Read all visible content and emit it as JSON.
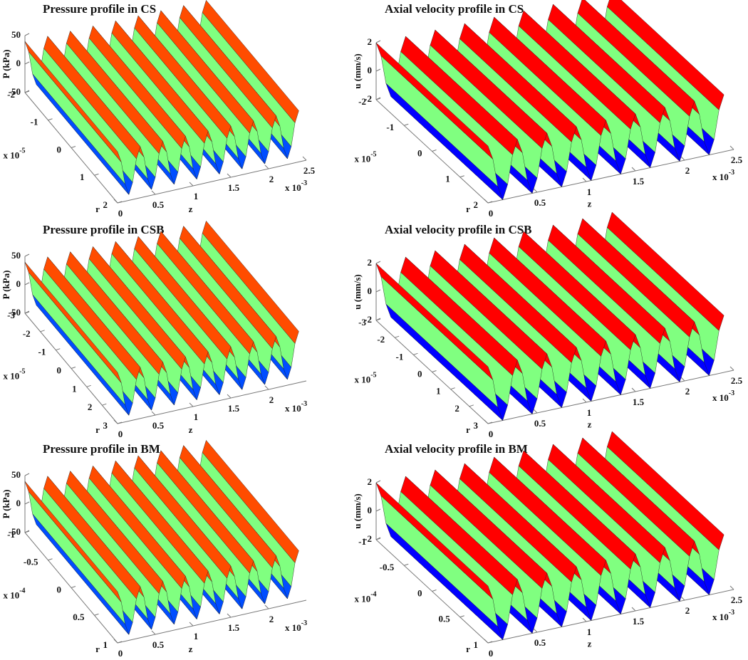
{
  "chart_data": [
    {
      "type": "surface",
      "title": "Pressure profile in CS",
      "ylabel": "P (kPa)",
      "xlabel": "z",
      "rlabel": "r",
      "x_multiplier": {
        "base": "x 10",
        "exponent": "-3"
      },
      "r_multiplier": {
        "base": "x 10",
        "exponent": "-5"
      },
      "x": [
        0,
        0.05,
        0.1,
        0.15,
        0.2,
        0.25,
        0.3,
        0.35,
        0.4,
        0.45,
        0.5,
        0.55,
        0.6,
        0.65,
        0.7,
        0.75,
        0.8,
        0.85,
        0.9,
        0.95,
        1,
        1.05,
        1.1,
        1.15,
        1.2,
        1.25,
        1.3,
        1.35,
        1.4,
        1.45,
        1.5,
        1.55,
        1.6,
        1.65,
        1.7,
        1.75,
        1.8,
        1.85,
        1.9,
        1.95,
        2,
        2.05,
        2.1,
        2.15,
        2.2,
        2.25,
        2.3,
        2.35,
        2.4
      ],
      "values": [
        40,
        20,
        -20,
        -40,
        -20,
        20,
        40,
        20,
        -20,
        -40,
        -20,
        20,
        40,
        20,
        -20,
        -40,
        -20,
        20,
        40,
        20,
        -20,
        -40,
        -20,
        20,
        40,
        20,
        -20,
        -40,
        -20,
        20,
        40,
        20,
        -20,
        -40,
        -20,
        20,
        40,
        20,
        -20,
        -40,
        -20,
        20,
        40,
        20,
        -20,
        -40,
        -20,
        20,
        40
      ],
      "xlim": [
        0,
        2.5
      ],
      "xticks": [
        0,
        0.5,
        1,
        1.5,
        2,
        2.5
      ],
      "rlim": [
        -2,
        2
      ],
      "rticks": [
        -2,
        -1,
        0,
        1,
        2
      ],
      "ylim": [
        -50,
        50
      ],
      "yticks": [
        -50,
        0,
        50
      ],
      "colormap": "jet"
    },
    {
      "type": "surface",
      "title": "Axial velocity profile in CS",
      "ylabel": "u (mm/s)",
      "xlabel": "z",
      "rlabel": "r",
      "x_multiplier": {
        "base": "x 10",
        "exponent": "-3"
      },
      "r_multiplier": {
        "base": "x 10",
        "exponent": "-5"
      },
      "x": [
        0,
        0.05,
        0.1,
        0.15,
        0.2,
        0.25,
        0.3,
        0.35,
        0.4,
        0.45,
        0.5,
        0.55,
        0.6,
        0.65,
        0.7,
        0.75,
        0.8,
        0.85,
        0.9,
        0.95,
        1,
        1.05,
        1.1,
        1.15,
        1.2,
        1.25,
        1.3,
        1.35,
        1.4,
        1.45,
        1.5,
        1.55,
        1.6,
        1.65,
        1.7,
        1.75,
        1.8,
        1.85,
        1.9,
        1.95,
        2,
        2.05,
        2.1,
        2.15,
        2.2,
        2.25,
        2.3,
        2.35,
        2.4
      ],
      "values": [
        2,
        1,
        -1,
        -2,
        -1,
        1,
        2,
        1,
        -1,
        -2,
        -1,
        1,
        2,
        1,
        -1,
        -2,
        -1,
        1,
        2,
        1,
        -1,
        -2,
        -1,
        1,
        2,
        1,
        -1,
        -2,
        -1,
        1,
        2,
        1,
        -1,
        -2,
        -1,
        1,
        2,
        1,
        -1,
        -2,
        -1,
        1,
        2,
        1,
        -1,
        -2,
        -1,
        1,
        2
      ],
      "xlim": [
        0,
        2.5
      ],
      "xticks": [
        0,
        0.5,
        1,
        1.5,
        2,
        2.5
      ],
      "rlim": [
        -2,
        2
      ],
      "rticks": [
        -2,
        -1,
        0,
        1,
        2
      ],
      "ylim": [
        -2,
        2
      ],
      "yticks": [
        -2,
        0,
        2
      ],
      "colormap": "jet"
    },
    {
      "type": "surface",
      "title": "Pressure profile in CSB",
      "ylabel": "P (kPa)",
      "xlabel": "z",
      "rlabel": "r",
      "x_multiplier": {
        "base": "x 10",
        "exponent": "-3"
      },
      "r_multiplier": {
        "base": "x 10",
        "exponent": "-5"
      },
      "x": [
        0,
        0.05,
        0.1,
        0.15,
        0.2,
        0.25,
        0.3,
        0.35,
        0.4,
        0.45,
        0.5,
        0.55,
        0.6,
        0.65,
        0.7,
        0.75,
        0.8,
        0.85,
        0.9,
        0.95,
        1,
        1.05,
        1.1,
        1.15,
        1.2,
        1.25,
        1.3,
        1.35,
        1.4,
        1.45,
        1.5,
        1.55,
        1.6,
        1.65,
        1.7,
        1.75,
        1.8,
        1.85,
        1.9,
        1.95,
        2,
        2.05,
        2.1,
        2.15,
        2.2,
        2.25,
        2.3,
        2.35,
        2.4
      ],
      "values": [
        40,
        20,
        -20,
        -40,
        -20,
        20,
        40,
        20,
        -20,
        -40,
        -20,
        20,
        40,
        20,
        -20,
        -40,
        -20,
        20,
        40,
        20,
        -20,
        -40,
        -20,
        20,
        40,
        20,
        -20,
        -40,
        -20,
        20,
        40,
        20,
        -20,
        -40,
        -20,
        20,
        40,
        20,
        -20,
        -40,
        -20,
        20,
        40,
        20,
        -20,
        -40,
        -20,
        20,
        40
      ],
      "xlim": [
        0,
        2.5
      ],
      "xticks": [
        0,
        0.5,
        1,
        1.5,
        2
      ],
      "rlim": [
        -3,
        3
      ],
      "rticks": [
        -3,
        -2,
        -1,
        0,
        1,
        2,
        3
      ],
      "ylim": [
        -50,
        50
      ],
      "yticks": [
        -50,
        0,
        50
      ],
      "colormap": "jet"
    },
    {
      "type": "surface",
      "title": "Axial velocity profile in CSB",
      "ylabel": "u (mm/s)",
      "xlabel": "z",
      "rlabel": "r",
      "x_multiplier": {
        "base": "x 10",
        "exponent": "-3"
      },
      "r_multiplier": {
        "base": "x 10",
        "exponent": "-5"
      },
      "x": [
        0,
        0.05,
        0.1,
        0.15,
        0.2,
        0.25,
        0.3,
        0.35,
        0.4,
        0.45,
        0.5,
        0.55,
        0.6,
        0.65,
        0.7,
        0.75,
        0.8,
        0.85,
        0.9,
        0.95,
        1,
        1.05,
        1.1,
        1.15,
        1.2,
        1.25,
        1.3,
        1.35,
        1.4,
        1.45,
        1.5,
        1.55,
        1.6,
        1.65,
        1.7,
        1.75,
        1.8,
        1.85,
        1.9,
        1.95,
        2,
        2.05,
        2.1,
        2.15,
        2.2,
        2.25,
        2.3,
        2.35,
        2.4
      ],
      "values": [
        2,
        1,
        -1,
        -2,
        -1,
        1,
        2,
        1,
        -1,
        -2,
        -1,
        1,
        2,
        1,
        -1,
        -2,
        -1,
        1,
        2,
        1,
        -1,
        -2,
        -1,
        1,
        2,
        1,
        -1,
        -2,
        -1,
        1,
        2,
        1,
        -1,
        -2,
        -1,
        1,
        2,
        1,
        -1,
        -2,
        -1,
        1,
        2,
        1,
        -1,
        -2,
        -1,
        1,
        2
      ],
      "xlim": [
        0,
        2.5
      ],
      "xticks": [
        0,
        0.5,
        1,
        1.5,
        2,
        2.5
      ],
      "rlim": [
        -3,
        3
      ],
      "rticks": [
        -3,
        -2,
        -1,
        0,
        1,
        2,
        3
      ],
      "ylim": [
        -2,
        2
      ],
      "yticks": [
        -2,
        0,
        2
      ],
      "colormap": "jet"
    },
    {
      "type": "surface",
      "title": "Pressure profile in BM",
      "ylabel": "P (kPa)",
      "xlabel": "z",
      "rlabel": "r",
      "x_multiplier": {
        "base": "x 10",
        "exponent": "-3"
      },
      "r_multiplier": {
        "base": "x 10",
        "exponent": "-4"
      },
      "x": [
        0,
        0.05,
        0.1,
        0.15,
        0.2,
        0.25,
        0.3,
        0.35,
        0.4,
        0.45,
        0.5,
        0.55,
        0.6,
        0.65,
        0.7,
        0.75,
        0.8,
        0.85,
        0.9,
        0.95,
        1,
        1.05,
        1.1,
        1.15,
        1.2,
        1.25,
        1.3,
        1.35,
        1.4,
        1.45,
        1.5,
        1.55,
        1.6,
        1.65,
        1.7,
        1.75,
        1.8,
        1.85,
        1.9,
        1.95,
        2,
        2.05,
        2.1,
        2.15,
        2.2,
        2.25,
        2.3,
        2.35,
        2.4
      ],
      "values": [
        40,
        20,
        -20,
        -40,
        -20,
        20,
        40,
        20,
        -20,
        -40,
        -20,
        20,
        40,
        20,
        -20,
        -40,
        -20,
        20,
        40,
        20,
        -20,
        -40,
        -20,
        20,
        40,
        20,
        -20,
        -40,
        -20,
        20,
        40,
        20,
        -20,
        -40,
        -20,
        20,
        40,
        20,
        -20,
        -40,
        -20,
        20,
        40,
        20,
        -20,
        -40,
        -20,
        20,
        40
      ],
      "xlim": [
        0,
        2.5
      ],
      "xticks": [
        0,
        0.5,
        1,
        1.5,
        2
      ],
      "rlim": [
        -1,
        1
      ],
      "rticks": [
        -1,
        -0.5,
        0,
        0.5,
        1
      ],
      "ylim": [
        -50,
        50
      ],
      "yticks": [
        -50,
        0,
        50
      ],
      "colormap": "jet"
    },
    {
      "type": "surface",
      "title": "Axial velocity profile in BM",
      "ylabel": "u (mm/s)",
      "xlabel": "z",
      "rlabel": "r",
      "x_multiplier": {
        "base": "x 10",
        "exponent": "-3"
      },
      "r_multiplier": {
        "base": "x 10",
        "exponent": "-4"
      },
      "x": [
        0,
        0.05,
        0.1,
        0.15,
        0.2,
        0.25,
        0.3,
        0.35,
        0.4,
        0.45,
        0.5,
        0.55,
        0.6,
        0.65,
        0.7,
        0.75,
        0.8,
        0.85,
        0.9,
        0.95,
        1,
        1.05,
        1.1,
        1.15,
        1.2,
        1.25,
        1.3,
        1.35,
        1.4,
        1.45,
        1.5,
        1.55,
        1.6,
        1.65,
        1.7,
        1.75,
        1.8,
        1.85,
        1.9,
        1.95,
        2,
        2.05,
        2.1,
        2.15,
        2.2,
        2.25,
        2.3,
        2.35,
        2.4
      ],
      "values": [
        2,
        1,
        -1,
        -2,
        -1,
        1,
        2,
        1,
        -1,
        -2,
        -1,
        1,
        2,
        1,
        -1,
        -2,
        -1,
        1,
        2,
        1,
        -1,
        -2,
        -1,
        1,
        2,
        1,
        -1,
        -2,
        -1,
        1,
        2,
        1,
        -1,
        -2,
        -1,
        1,
        2,
        1,
        -1,
        -2,
        -1,
        1,
        2,
        1,
        -1,
        -2,
        -1,
        1,
        2
      ],
      "xlim": [
        0,
        2.5
      ],
      "xticks": [
        0,
        0.5,
        1,
        1.5,
        2,
        2.5
      ],
      "rlim": [
        -1,
        1
      ],
      "rticks": [
        -1,
        -0.5,
        0,
        0.5,
        1
      ],
      "ylim": [
        -2,
        2
      ],
      "yticks": [
        -2,
        0,
        2
      ],
      "colormap": "jet"
    }
  ]
}
